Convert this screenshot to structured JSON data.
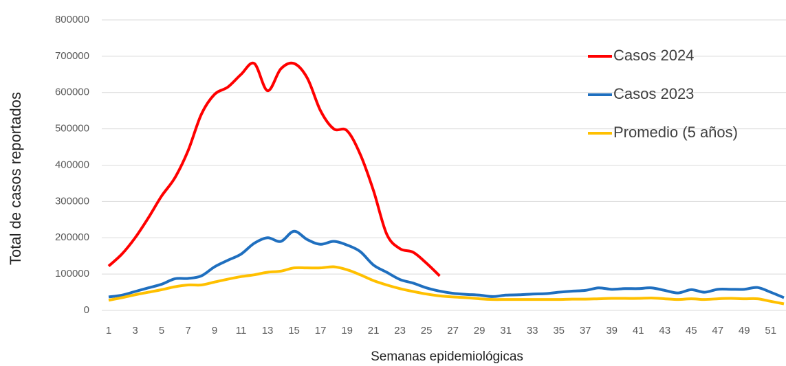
{
  "chart_data": {
    "type": "line",
    "xlabel": "Semanas epidemiológicas",
    "ylabel": "Total de casos reportados",
    "x": [
      1,
      2,
      3,
      4,
      5,
      6,
      7,
      8,
      9,
      10,
      11,
      12,
      13,
      14,
      15,
      16,
      17,
      18,
      19,
      20,
      21,
      22,
      23,
      24,
      25,
      26,
      27,
      28,
      29,
      30,
      31,
      32,
      33,
      34,
      35,
      36,
      37,
      38,
      39,
      40,
      41,
      42,
      43,
      44,
      45,
      46,
      47,
      48,
      49,
      50,
      51,
      52
    ],
    "xlim": [
      1,
      52
    ],
    "xticks": [
      1,
      3,
      5,
      7,
      9,
      11,
      13,
      15,
      17,
      19,
      21,
      23,
      25,
      27,
      29,
      31,
      33,
      35,
      37,
      39,
      41,
      43,
      45,
      47,
      49,
      51
    ],
    "ylim": [
      0,
      800000
    ],
    "yticks": [
      0,
      100000,
      200000,
      300000,
      400000,
      500000,
      600000,
      700000,
      800000
    ],
    "grid": true,
    "legend": "upper right",
    "series": [
      {
        "name": "Casos 2024",
        "color": "#ff0000",
        "values": [
          122000,
          155000,
          200000,
          255000,
          315000,
          365000,
          440000,
          540000,
          595000,
          615000,
          650000,
          680000,
          605000,
          665000,
          680000,
          640000,
          550000,
          500000,
          495000,
          430000,
          330000,
          210000,
          170000,
          160000,
          130000,
          95000,
          null,
          null,
          null,
          null,
          null,
          null,
          null,
          null,
          null,
          null,
          null,
          null,
          null,
          null,
          null,
          null,
          null,
          null,
          null,
          null,
          null,
          null,
          null,
          null,
          null,
          null
        ]
      },
      {
        "name": "Casos 2023",
        "color": "#1f6fbf",
        "values": [
          37000,
          42000,
          52000,
          62000,
          72000,
          87000,
          88000,
          95000,
          120000,
          138000,
          155000,
          185000,
          200000,
          190000,
          218000,
          195000,
          182000,
          190000,
          180000,
          162000,
          125000,
          105000,
          85000,
          75000,
          62000,
          53000,
          47000,
          44000,
          42000,
          38000,
          42000,
          43000,
          45000,
          46000,
          50000,
          53000,
          55000,
          62000,
          58000,
          60000,
          60000,
          62000,
          55000,
          48000,
          57000,
          50000,
          58000,
          58000,
          58000,
          63000,
          50000,
          35000
        ]
      },
      {
        "name": "Promedio (5 años)",
        "color": "#ffc000",
        "values": [
          28000,
          35000,
          43000,
          50000,
          57000,
          65000,
          70000,
          70000,
          78000,
          86000,
          93000,
          98000,
          105000,
          108000,
          117000,
          117000,
          117000,
          120000,
          112000,
          98000,
          82000,
          70000,
          60000,
          52000,
          45000,
          40000,
          37000,
          35000,
          32000,
          30000,
          30000,
          30000,
          30000,
          30000,
          30000,
          31000,
          31000,
          32000,
          33000,
          33000,
          33000,
          34000,
          32000,
          30000,
          32000,
          30000,
          32000,
          33000,
          32000,
          32000,
          25000,
          18000
        ]
      }
    ]
  }
}
